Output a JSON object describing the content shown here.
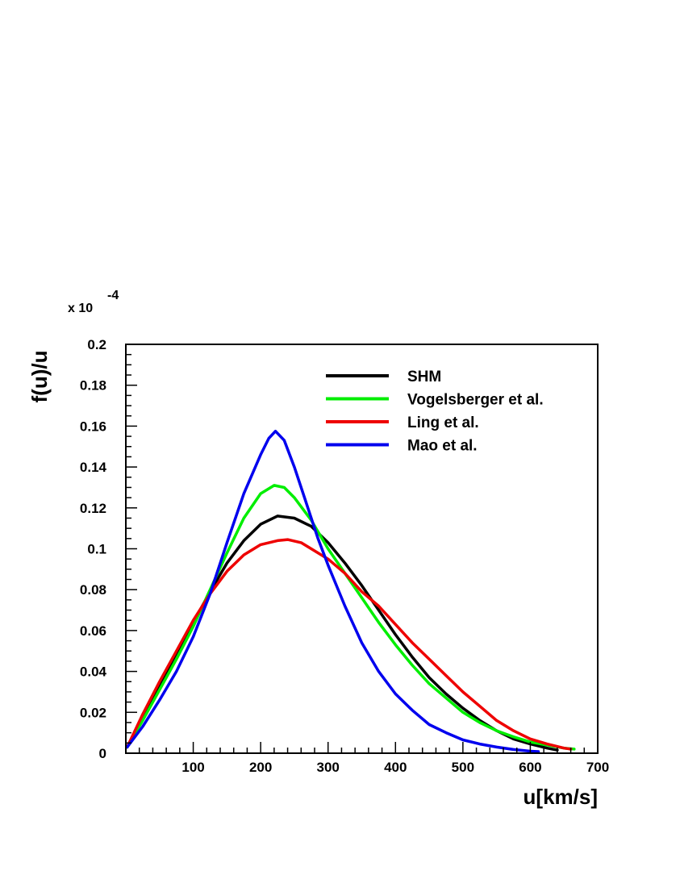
{
  "chart_data": {
    "type": "line",
    "xlabel": "u[km/s]",
    "ylabel": "f(u)/u",
    "y_multiplier": "x 10",
    "y_exponent": "-4",
    "xlim": [
      0,
      700
    ],
    "ylim": [
      0,
      0.2
    ],
    "x_ticks": [
      100,
      200,
      300,
      400,
      500,
      600,
      700
    ],
    "y_ticks": [
      0,
      0.02,
      0.04,
      0.06,
      0.08,
      0.1,
      0.12,
      0.14,
      0.16,
      0.18,
      0.2
    ],
    "x_tick_labels": [
      "100",
      "200",
      "300",
      "400",
      "500",
      "600",
      "700"
    ],
    "y_tick_labels": [
      "0",
      "0.02",
      "0.04",
      "0.06",
      "0.08",
      "0.1",
      "0.12",
      "0.14",
      "0.16",
      "0.18",
      "0.2"
    ],
    "grid": false,
    "legend_position": "top-right",
    "series": [
      {
        "name": "SHM",
        "color": "#000000",
        "points": [
          [
            2,
            0.003
          ],
          [
            25,
            0.018
          ],
          [
            50,
            0.033
          ],
          [
            75,
            0.049
          ],
          [
            100,
            0.064
          ],
          [
            125,
            0.079
          ],
          [
            150,
            0.093
          ],
          [
            175,
            0.104
          ],
          [
            200,
            0.112
          ],
          [
            225,
            0.116
          ],
          [
            250,
            0.115
          ],
          [
            275,
            0.111
          ],
          [
            300,
            0.103
          ],
          [
            325,
            0.093
          ],
          [
            350,
            0.082
          ],
          [
            375,
            0.07
          ],
          [
            400,
            0.058
          ],
          [
            425,
            0.047
          ],
          [
            450,
            0.037
          ],
          [
            475,
            0.029
          ],
          [
            500,
            0.022
          ],
          [
            525,
            0.016
          ],
          [
            550,
            0.011
          ],
          [
            575,
            0.007
          ],
          [
            600,
            0.0045
          ],
          [
            625,
            0.0025
          ],
          [
            640,
            0.0015
          ]
        ]
      },
      {
        "name": "Vogelsberger et al.",
        "color": "#00ee00",
        "points": [
          [
            2,
            0.003
          ],
          [
            25,
            0.016
          ],
          [
            50,
            0.031
          ],
          [
            75,
            0.046
          ],
          [
            100,
            0.062
          ],
          [
            125,
            0.08
          ],
          [
            150,
            0.098
          ],
          [
            175,
            0.115
          ],
          [
            200,
            0.127
          ],
          [
            220,
            0.131
          ],
          [
            235,
            0.13
          ],
          [
            250,
            0.125
          ],
          [
            275,
            0.114
          ],
          [
            300,
            0.1
          ],
          [
            325,
            0.088
          ],
          [
            350,
            0.076
          ],
          [
            375,
            0.064
          ],
          [
            400,
            0.053
          ],
          [
            425,
            0.043
          ],
          [
            450,
            0.034
          ],
          [
            475,
            0.027
          ],
          [
            500,
            0.02
          ],
          [
            525,
            0.015
          ],
          [
            550,
            0.011
          ],
          [
            575,
            0.008
          ],
          [
            600,
            0.0055
          ],
          [
            625,
            0.004
          ],
          [
            650,
            0.0025
          ],
          [
            665,
            0.002
          ]
        ]
      },
      {
        "name": "Ling et al.",
        "color": "#ee0000",
        "points": [
          [
            2,
            0.003
          ],
          [
            25,
            0.019
          ],
          [
            50,
            0.035
          ],
          [
            75,
            0.05
          ],
          [
            100,
            0.065
          ],
          [
            125,
            0.078
          ],
          [
            150,
            0.089
          ],
          [
            175,
            0.097
          ],
          [
            200,
            0.102
          ],
          [
            225,
            0.104
          ],
          [
            240,
            0.1045
          ],
          [
            260,
            0.103
          ],
          [
            275,
            0.1
          ],
          [
            300,
            0.095
          ],
          [
            325,
            0.088
          ],
          [
            350,
            0.079
          ],
          [
            375,
            0.072
          ],
          [
            400,
            0.063
          ],
          [
            425,
            0.054
          ],
          [
            450,
            0.046
          ],
          [
            475,
            0.038
          ],
          [
            500,
            0.03
          ],
          [
            525,
            0.023
          ],
          [
            550,
            0.016
          ],
          [
            575,
            0.011
          ],
          [
            600,
            0.007
          ],
          [
            625,
            0.0045
          ],
          [
            650,
            0.0025
          ],
          [
            660,
            0.002
          ]
        ]
      },
      {
        "name": "Mao et al.",
        "color": "#0000ee",
        "points": [
          [
            2,
            0.003
          ],
          [
            25,
            0.013
          ],
          [
            50,
            0.026
          ],
          [
            75,
            0.04
          ],
          [
            100,
            0.057
          ],
          [
            125,
            0.078
          ],
          [
            150,
            0.103
          ],
          [
            175,
            0.127
          ],
          [
            200,
            0.146
          ],
          [
            212,
            0.154
          ],
          [
            222,
            0.1575
          ],
          [
            235,
            0.153
          ],
          [
            250,
            0.14
          ],
          [
            265,
            0.125
          ],
          [
            285,
            0.105
          ],
          [
            300,
            0.092
          ],
          [
            325,
            0.072
          ],
          [
            350,
            0.054
          ],
          [
            375,
            0.04
          ],
          [
            400,
            0.029
          ],
          [
            425,
            0.021
          ],
          [
            450,
            0.014
          ],
          [
            475,
            0.01
          ],
          [
            500,
            0.0065
          ],
          [
            525,
            0.0045
          ],
          [
            550,
            0.003
          ],
          [
            575,
            0.0018
          ],
          [
            600,
            0.001
          ],
          [
            612,
            0.0008
          ]
        ]
      }
    ]
  }
}
